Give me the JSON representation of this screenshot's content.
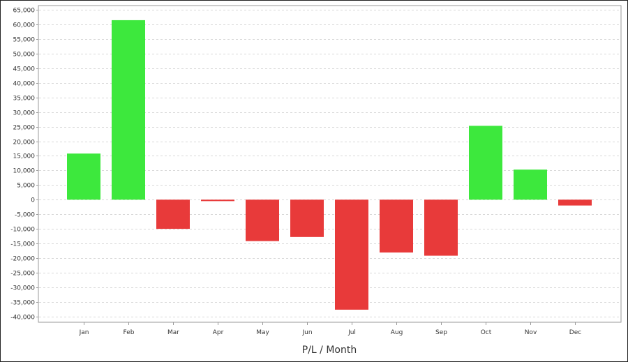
{
  "chart_data": {
    "type": "bar",
    "title": "",
    "xlabel": "P/L / Month",
    "ylabel": "",
    "categories": [
      "Jan",
      "Feb",
      "Mar",
      "Apr",
      "May",
      "Jun",
      "Jul",
      "Aug",
      "Sep",
      "Oct",
      "Nov",
      "Dec"
    ],
    "values": [
      15800,
      61500,
      -10000,
      -500,
      -14200,
      -12800,
      -37700,
      -18100,
      -19200,
      25300,
      10300,
      -2000
    ],
    "ylim": [
      -42000,
      66500
    ],
    "yticks": [
      -40000,
      -35000,
      -30000,
      -25000,
      -20000,
      -15000,
      -10000,
      -5000,
      0,
      5000,
      10000,
      15000,
      20000,
      25000,
      30000,
      35000,
      40000,
      45000,
      50000,
      55000,
      60000,
      65000
    ],
    "ytick_labels": [
      "-40,000",
      "-35,000",
      "-30,000",
      "-25,000",
      "-20,000",
      "-15,000",
      "-10,000",
      "-5,000",
      "0",
      "5,000",
      "10,000",
      "15,000",
      "20,000",
      "25,000",
      "30,000",
      "35,000",
      "40,000",
      "45,000",
      "50,000",
      "55,000",
      "60,000",
      "65,000"
    ],
    "grid": true,
    "legend": "none",
    "colors": {
      "positive": "#3de83d",
      "negative": "#e83a3a",
      "grid": "#d8d8d8",
      "axis": "#999999"
    }
  }
}
